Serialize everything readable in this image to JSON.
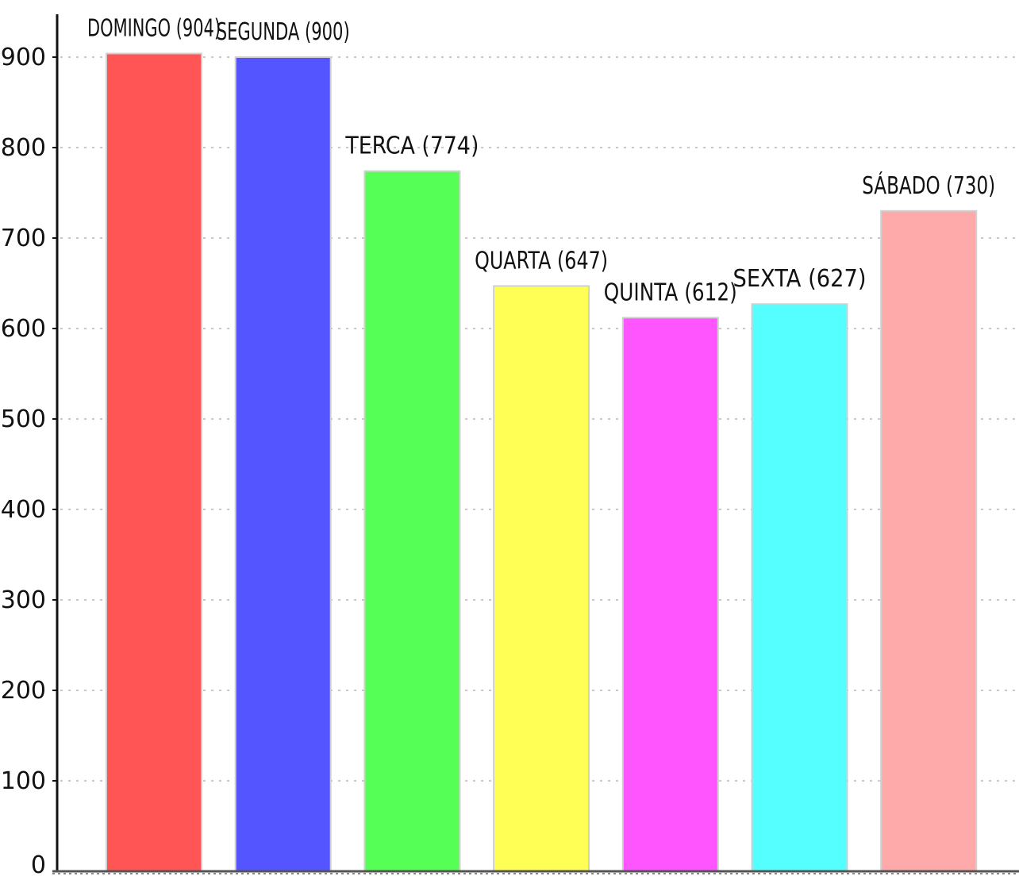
{
  "chart_data": {
    "type": "bar",
    "title": "",
    "xlabel": "",
    "ylabel": "",
    "ylim": [
      0,
      950
    ],
    "yticks": [
      0,
      100,
      200,
      300,
      400,
      500,
      600,
      700,
      800,
      900
    ],
    "grid": "horizontal dotted",
    "categories": [
      "DOMINGO",
      "SEGUNDA",
      "TERCA",
      "QUARTA",
      "QUINTA",
      "SEXTA",
      "SÁBADO"
    ],
    "values": [
      904,
      900,
      774,
      647,
      612,
      627,
      730
    ],
    "data_labels": [
      "DOMINGO (904)",
      "SEGUNDA (900)",
      "TERCA (774)",
      "QUARTA (647)",
      "QUINTA (612)",
      "SEXTA (627)",
      "SÁBADO (730)"
    ],
    "colors": [
      "#ff5555",
      "#5555ff",
      "#55ff55",
      "#ffff55",
      "#ff55ff",
      "#55ffff",
      "#ffaaaa"
    ]
  }
}
